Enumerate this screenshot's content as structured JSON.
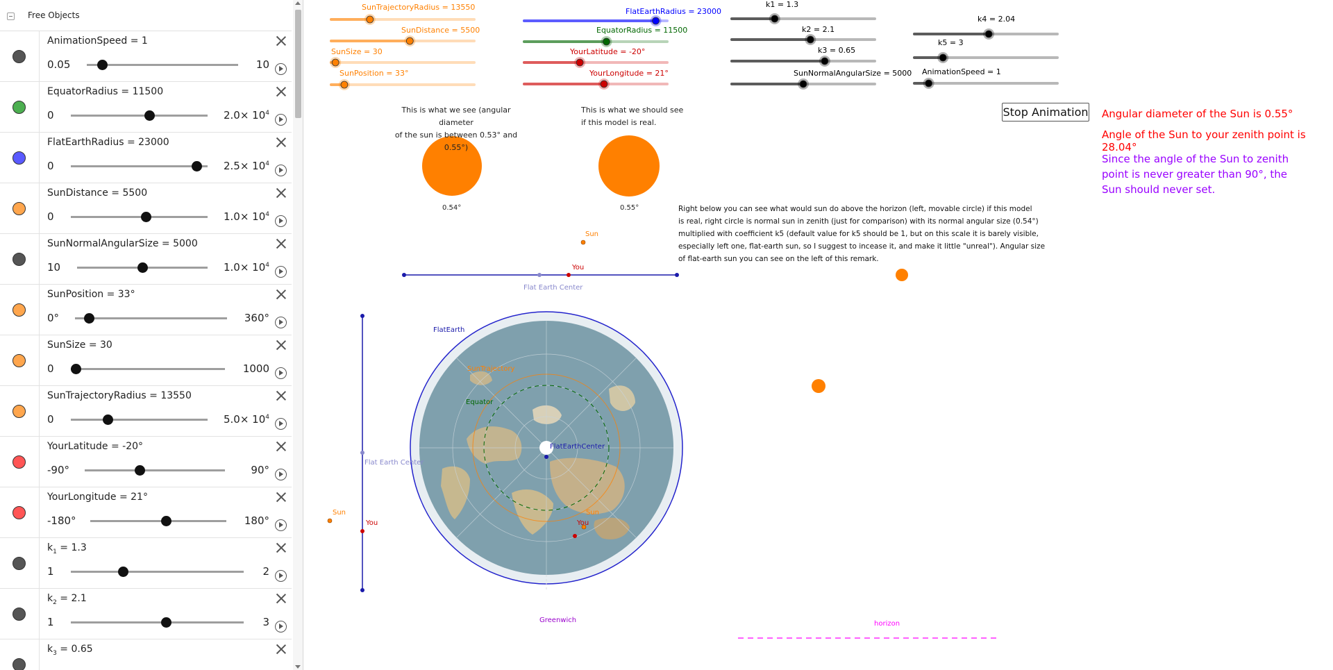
{
  "algebra": {
    "header_label": "Free Objects",
    "items": [
      {
        "label": "AnimationSpeed = 1",
        "min": "0.05",
        "max": "10",
        "color": "#555555",
        "value_fraction": 0.1
      },
      {
        "label": "EquatorRadius = 11500",
        "min": "0",
        "max": "2.0× 10",
        "max_exp": "4",
        "color": "#4caf50",
        "value_fraction": 0.575
      },
      {
        "label": "FlatEarthRadius = 23000",
        "min": "0",
        "max": "2.5× 10",
        "max_exp": "4",
        "color": "#5a5aff",
        "value_fraction": 0.92
      },
      {
        "label": "SunDistance = 5500",
        "min": "0",
        "max": "1.0× 10",
        "max_exp": "4",
        "color": "#ffa64d",
        "value_fraction": 0.55
      },
      {
        "label": "SunNormalAngularSize = 5000",
        "min": "10",
        "max": "1.0× 10",
        "max_exp": "4",
        "color": "#555555",
        "value_fraction": 0.5
      },
      {
        "label": "SunPosition = 33°",
        "min": "0°",
        "max": "360°",
        "color": "#ffa64d",
        "value_fraction": 0.092
      },
      {
        "label": "SunSize = 30",
        "min": "0",
        "max": "1000",
        "color": "#ffa64d",
        "value_fraction": 0.03
      },
      {
        "label": "SunTrajectoryRadius = 13550",
        "min": "0",
        "max": "5.0× 10",
        "max_exp": "4",
        "color": "#ffa64d",
        "value_fraction": 0.271
      },
      {
        "label": "YourLatitude = -20°",
        "min": "-90°",
        "max": "90°",
        "color": "#ff5555",
        "value_fraction": 0.389
      },
      {
        "label": "YourLongitude = 21°",
        "min": "-180°",
        "max": "180°",
        "color": "#ff5555",
        "value_fraction": 0.558
      },
      {
        "label": "k",
        "sub": "1",
        "tail": " = 1.3",
        "min": "1",
        "max": "2",
        "color": "#555555",
        "value_fraction": 0.3
      },
      {
        "label": "k",
        "sub": "2",
        "tail": " = 2.1",
        "min": "1",
        "max": "3",
        "color": "#555555",
        "value_fraction": 0.55
      },
      {
        "label": "k",
        "sub": "3",
        "tail": " = 0.65",
        "min": "",
        "max": "",
        "color": "#555555",
        "value_fraction": 0.65
      }
    ]
  },
  "sliders": [
    {
      "label": "SunTrajectoryRadius = 13550",
      "color": "#ff8000",
      "value_fraction": 0.271
    },
    {
      "label": "SunDistance = 5500",
      "color": "#ff8000",
      "value_fraction": 0.55
    },
    {
      "label": "SunSize = 30",
      "color": "#ff8000",
      "value_fraction": 0.03
    },
    {
      "label": "SunPosition = 33°",
      "color": "#ff8000",
      "value_fraction": 0.092
    },
    {
      "label": "FlatEarthRadius = 23000",
      "color": "#0000ff",
      "value_fraction": 0.92
    },
    {
      "label": "EquatorRadius = 11500",
      "color": "#006600",
      "value_fraction": 0.575
    },
    {
      "label": "YourLatitude = -20°",
      "color": "#cc0000",
      "value_fraction": 0.389
    },
    {
      "label": "YourLongitude = 21°",
      "color": "#cc0000",
      "value_fraction": 0.558
    },
    {
      "label": "k1 = 1.3",
      "color": "#000000",
      "value_fraction": 0.3
    },
    {
      "label": "k2 = 2.1",
      "color": "#000000",
      "value_fraction": 0.55
    },
    {
      "label": "k3 = 0.65",
      "color": "#000000",
      "value_fraction": 0.65
    },
    {
      "label": "SunNormalAngularSize = 5000",
      "color": "#000000",
      "value_fraction": 0.5
    },
    {
      "label": "k4 = 2.04",
      "color": "#000000",
      "value_fraction": 0.52
    },
    {
      "label": "k5 = 3",
      "color": "#000000",
      "value_fraction": 0.2
    },
    {
      "label": "AnimationSpeed = 1",
      "color": "#000000",
      "value_fraction": 0.1
    }
  ],
  "texts": {
    "see_line1": "This is what we see (angular diameter",
    "see_line2": "of the sun is between 0.53° and 0.55°)",
    "should_line1": "This is what we should see",
    "should_line2": "if this model is real.",
    "stop_button": "Stop Animation",
    "angular_diameter": "Angular diameter of the Sun is 0.55°",
    "zenith_angle": "Angle of the Sun to your zenith point is 28.04°",
    "never_set_1": "Since the angle of the Sun to zenith",
    "never_set_2": "point is never greater than 90°, the",
    "never_set_3": "Sun should never set.",
    "sun_left_value": "0.54°",
    "sun_right_value": "0.55°",
    "remark": [
      "Right below you can see what would sun do above the horizon (left, movable circle) if this model",
      "is real, right circle is normal sun in zenith (just for comparison) with its normal angular size (0.54°)",
      "multiplied with coefficient k5 (default value for k5 should be 1, but on this scale it is barely visible,",
      "especially left one, flat-earth sun, so I suggest to incease it, and make it little \"unreal\"). Angular size",
      "of flat-earth sun you can see on the left of this remark."
    ],
    "sun": "Sun",
    "you": "You",
    "flat_earth_center": "Flat Earth Center",
    "flat_earth": "FlatEarth",
    "sun_trajectory": "SunTrajectory",
    "equator": "Equator",
    "flat_earth_center_label": "FlatEarthCenter",
    "greenwich": "Greenwich",
    "horizon": "horizon"
  },
  "colors": {
    "sun_orange": "#ff8000",
    "red_text": "#ff0000",
    "purple_text": "#9900ff",
    "blue": "#1a1aaa",
    "magenta": "#ff00ff",
    "map_ocean": "#7fa0ad",
    "map_land": "#c2b490"
  }
}
